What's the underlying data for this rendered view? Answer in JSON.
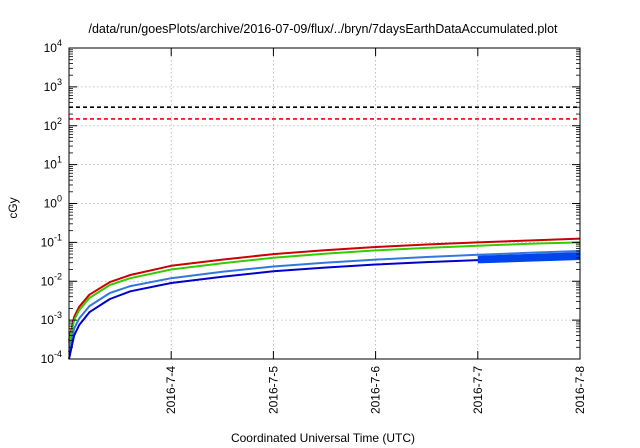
{
  "chart_data": {
    "type": "line",
    "title": "/data/run/goesPlots/archive/2016-07-09/flux/../bryn/7daysEarthDataAccumulated.plot",
    "xlabel": "Coordinated Universal Time (UTC)",
    "ylabel": "cGy",
    "x_scale": "date",
    "xlim": [
      "2016-07-03",
      "2016-07-08"
    ],
    "x_ticks": [
      "2016-7-4",
      "2016-7-5",
      "2016-7-6",
      "2016-7-7",
      "2016-7-8"
    ],
    "y_scale": "log",
    "ylim": [
      0.0001,
      10000
    ],
    "y_ticks": [
      {
        "base": "10",
        "exp": "-4"
      },
      {
        "base": "10",
        "exp": "-3"
      },
      {
        "base": "10",
        "exp": "-2"
      },
      {
        "base": "10",
        "exp": "-1"
      },
      {
        "base": "10",
        "exp": "0"
      },
      {
        "base": "10",
        "exp": "1"
      },
      {
        "base": "10",
        "exp": "2"
      },
      {
        "base": "10",
        "exp": "3"
      },
      {
        "base": "10",
        "exp": "4"
      }
    ],
    "grid": true,
    "series": [
      {
        "color": "#000000",
        "style": "dashed",
        "width": 1.6,
        "x": [
          "2016-07-03T00:00",
          "2016-07-08T00:00"
        ],
        "y": [
          300,
          300
        ]
      },
      {
        "color": "#ff0000",
        "style": "dashed",
        "width": 1.6,
        "x": [
          "2016-07-03T00:00",
          "2016-07-08T00:00"
        ],
        "y": [
          150,
          150
        ]
      },
      {
        "color": "#cc0000",
        "style": "solid",
        "width": 2,
        "x": [
          "2016-07-03T00:00",
          "2016-07-03T01:12",
          "2016-07-03T02:24",
          "2016-07-03T04:48",
          "2016-07-03T09:36",
          "2016-07-03T14:24",
          "2016-07-04T00:00",
          "2016-07-04T12:00",
          "2016-07-05T00:00",
          "2016-07-05T12:00",
          "2016-07-06T00:00",
          "2016-07-06T12:00",
          "2016-07-07T00:00",
          "2016-07-07T12:00",
          "2016-07-08T00:00"
        ],
        "y": [
          0.0003,
          0.0012,
          0.0022,
          0.0045,
          0.0095,
          0.0145,
          0.025,
          0.036,
          0.05,
          0.063,
          0.076,
          0.088,
          0.1,
          0.112,
          0.125
        ]
      },
      {
        "color": "#33cc00",
        "style": "solid",
        "width": 2,
        "x": [
          "2016-07-03T00:00",
          "2016-07-03T01:12",
          "2016-07-03T02:24",
          "2016-07-03T04:48",
          "2016-07-03T09:36",
          "2016-07-03T14:24",
          "2016-07-04T00:00",
          "2016-07-04T12:00",
          "2016-07-05T00:00",
          "2016-07-05T12:00",
          "2016-07-06T00:00",
          "2016-07-06T12:00",
          "2016-07-07T00:00",
          "2016-07-07T12:00",
          "2016-07-08T00:00"
        ],
        "y": [
          0.00025,
          0.001,
          0.0018,
          0.0037,
          0.008,
          0.012,
          0.02,
          0.029,
          0.04,
          0.051,
          0.062,
          0.072,
          0.082,
          0.092,
          0.1
        ]
      },
      {
        "color": "#3377dd",
        "style": "solid",
        "width": 2,
        "x": [
          "2016-07-03T00:00",
          "2016-07-03T01:12",
          "2016-07-03T02:24",
          "2016-07-03T04:48",
          "2016-07-03T09:36",
          "2016-07-03T14:24",
          "2016-07-04T00:00",
          "2016-07-04T12:00",
          "2016-07-05T00:00",
          "2016-07-05T12:00",
          "2016-07-06T00:00",
          "2016-07-06T12:00",
          "2016-07-07T00:00",
          "2016-07-07T12:00",
          "2016-07-08T00:00"
        ],
        "y": [
          0.00015,
          0.0006,
          0.0011,
          0.0023,
          0.005,
          0.0075,
          0.012,
          0.0175,
          0.024,
          0.03,
          0.036,
          0.042,
          0.048,
          0.054,
          0.06
        ]
      },
      {
        "color": "#0000cc",
        "style": "solid",
        "width": 2,
        "x": [
          "2016-07-03T00:00",
          "2016-07-03T01:12",
          "2016-07-03T02:24",
          "2016-07-03T04:48",
          "2016-07-03T09:36",
          "2016-07-03T14:24",
          "2016-07-04T00:00",
          "2016-07-04T12:00",
          "2016-07-05T00:00",
          "2016-07-05T12:00",
          "2016-07-06T00:00",
          "2016-07-06T12:00",
          "2016-07-07T00:00",
          "2016-07-07T12:00",
          "2016-07-08T00:00"
        ],
        "y": [
          0.0001,
          0.0004,
          0.00075,
          0.0016,
          0.0035,
          0.0055,
          0.009,
          0.013,
          0.018,
          0.0225,
          0.027,
          0.031,
          0.035,
          0.039,
          0.043
        ]
      },
      {
        "color": "#0044ee",
        "style": "solid",
        "width": 2.5,
        "x": [
          "2016-07-07T00:00",
          "2016-07-08T00:00"
        ],
        "y": [
          0.031,
          0.038
        ]
      },
      {
        "color": "#0044ee",
        "style": "solid",
        "width": 2.5,
        "x": [
          "2016-07-07T00:00",
          "2016-07-08T00:00"
        ],
        "y": [
          0.034,
          0.042
        ]
      },
      {
        "color": "#0044ee",
        "style": "solid",
        "width": 2.5,
        "x": [
          "2016-07-07T00:00",
          "2016-07-08T00:00"
        ],
        "y": [
          0.038,
          0.047
        ]
      },
      {
        "color": "#0044ee",
        "style": "solid",
        "width": 2.5,
        "x": [
          "2016-07-07T00:00",
          "2016-07-08T00:00"
        ],
        "y": [
          0.042,
          0.052
        ]
      }
    ]
  }
}
